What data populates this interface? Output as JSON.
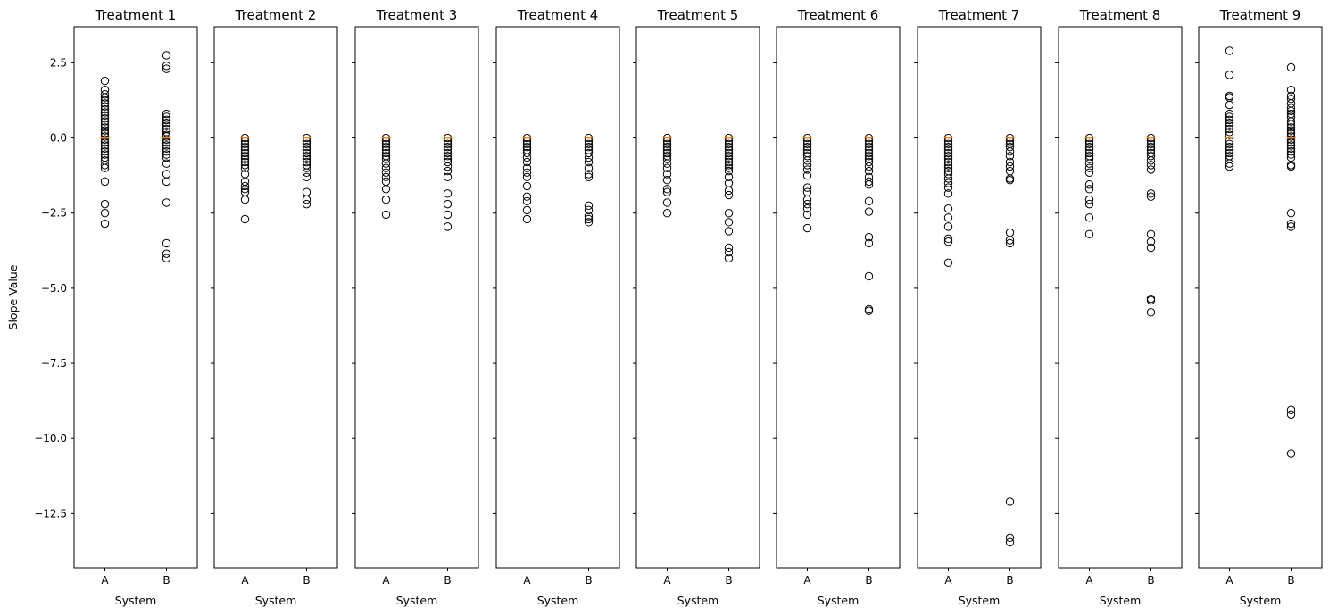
{
  "chart_data": {
    "type": "box",
    "ylabel": "Slope Value",
    "xlabel": "System",
    "ylim": [
      -14.3,
      3.7
    ],
    "yticks": [
      2.5,
      0.0,
      -2.5,
      -5.0,
      -7.5,
      -10.0,
      -12.5
    ],
    "ytick_labels": [
      "2.5",
      "0.0",
      "−2.5",
      "−5.0",
      "−7.5",
      "−10.0",
      "−12.5"
    ],
    "categories": [
      "A",
      "B"
    ],
    "median_color": "#ff7f0e",
    "panels": [
      {
        "title": "Treatment 1",
        "A": {
          "median": 0.0,
          "outliers": [
            1.9,
            1.6,
            1.45,
            1.35,
            1.25,
            1.15,
            1.05,
            0.95,
            0.85,
            0.75,
            0.65,
            0.55,
            0.45,
            0.35,
            0.25,
            0.15,
            0.05,
            -0.05,
            -0.15,
            -0.25,
            -0.35,
            -0.45,
            -0.55,
            -0.65,
            -0.75,
            -0.9,
            -1.0,
            -1.45,
            -2.2,
            -2.5,
            -2.85
          ]
        },
        "B": {
          "median": 0.0,
          "outliers": [
            2.75,
            2.4,
            2.3,
            0.8,
            0.7,
            0.6,
            0.5,
            0.4,
            0.3,
            0.2,
            0.1,
            0.05,
            -0.05,
            -0.15,
            -0.25,
            -0.35,
            -0.45,
            -0.55,
            -0.65,
            -0.85,
            -1.2,
            -1.45,
            -2.15,
            -3.5,
            -3.85,
            -4.0
          ]
        }
      },
      {
        "title": "Treatment 2",
        "A": {
          "median": 0.0,
          "outliers": [
            0.0,
            -0.1,
            -0.2,
            -0.3,
            -0.4,
            -0.5,
            -0.6,
            -0.7,
            -0.8,
            -0.9,
            -1.0,
            -1.2,
            -1.45,
            -1.6,
            -1.7,
            -1.8,
            -2.05,
            -2.7
          ]
        },
        "B": {
          "median": 0.0,
          "outliers": [
            0.0,
            -0.1,
            -0.2,
            -0.3,
            -0.4,
            -0.5,
            -0.6,
            -0.7,
            -0.8,
            -0.9,
            -1.0,
            -1.15,
            -1.3,
            -1.8,
            -2.05,
            -2.2
          ]
        }
      },
      {
        "title": "Treatment 3",
        "A": {
          "median": 0.0,
          "outliers": [
            0.0,
            -0.1,
            -0.2,
            -0.3,
            -0.4,
            -0.5,
            -0.6,
            -0.7,
            -0.85,
            -1.0,
            -1.15,
            -1.3,
            -1.45,
            -1.7,
            -2.05,
            -2.55
          ]
        },
        "B": {
          "median": 0.0,
          "outliers": [
            0.0,
            -0.1,
            -0.2,
            -0.3,
            -0.4,
            -0.5,
            -0.6,
            -0.7,
            -0.8,
            -0.95,
            -1.1,
            -1.3,
            -1.85,
            -2.2,
            -2.55,
            -2.95
          ]
        }
      },
      {
        "title": "Treatment 4",
        "A": {
          "median": 0.0,
          "outliers": [
            0.0,
            -0.1,
            -0.2,
            -0.3,
            -0.4,
            -0.5,
            -0.65,
            -0.8,
            -1.0,
            -1.15,
            -1.3,
            -1.6,
            -1.95,
            -2.1,
            -2.4,
            -2.7
          ]
        },
        "B": {
          "median": 0.0,
          "outliers": [
            0.0,
            -0.1,
            -0.2,
            -0.3,
            -0.4,
            -0.5,
            -0.65,
            -0.8,
            -1.0,
            -1.2,
            -1.3,
            -2.25,
            -2.4,
            -2.6,
            -2.7,
            -2.8
          ]
        }
      },
      {
        "title": "Treatment 5",
        "A": {
          "median": 0.0,
          "outliers": [
            0.0,
            -0.1,
            -0.2,
            -0.3,
            -0.4,
            -0.5,
            -0.6,
            -0.7,
            -0.85,
            -1.0,
            -1.2,
            -1.4,
            -1.7,
            -1.8,
            -2.15,
            -2.5
          ]
        },
        "B": {
          "median": 0.0,
          "outliers": [
            0.0,
            -0.1,
            -0.2,
            -0.3,
            -0.4,
            -0.5,
            -0.6,
            -0.7,
            -0.8,
            -0.9,
            -1.0,
            -1.1,
            -1.3,
            -1.5,
            -1.75,
            -1.9,
            -2.5,
            -2.8,
            -3.1,
            -3.65,
            -3.8,
            -4.0
          ]
        }
      },
      {
        "title": "Treatment 6",
        "A": {
          "median": 0.0,
          "outliers": [
            0.0,
            -0.1,
            -0.2,
            -0.3,
            -0.4,
            -0.5,
            -0.6,
            -0.75,
            -0.9,
            -1.05,
            -1.25,
            -1.65,
            -1.8,
            -2.05,
            -2.2,
            -2.35,
            -2.55,
            -3.0
          ]
        },
        "B": {
          "median": 0.0,
          "outliers": [
            0.0,
            -0.1,
            -0.2,
            -0.3,
            -0.4,
            -0.5,
            -0.6,
            -0.7,
            -0.8,
            -0.95,
            -1.1,
            -1.3,
            -1.45,
            -1.55,
            -2.1,
            -2.45,
            -3.3,
            -3.5,
            -4.6,
            -5.7,
            -5.75
          ]
        }
      },
      {
        "title": "Treatment 7",
        "A": {
          "median": 0.0,
          "outliers": [
            0.0,
            -0.1,
            -0.2,
            -0.3,
            -0.4,
            -0.5,
            -0.6,
            -0.7,
            -0.8,
            -0.9,
            -1.0,
            -1.1,
            -1.2,
            -1.35,
            -1.5,
            -1.65,
            -1.85,
            -2.35,
            -2.65,
            -2.95,
            -3.35,
            -3.45,
            -4.15
          ]
        },
        "B": {
          "median": 0.0,
          "outliers": [
            0.0,
            -0.1,
            -0.2,
            -0.3,
            -0.45,
            -0.6,
            -0.8,
            -0.95,
            -1.1,
            -1.35,
            -1.4,
            -3.15,
            -3.4,
            -3.5,
            -12.1,
            -13.3,
            -13.45
          ]
        }
      },
      {
        "title": "Treatment 8",
        "A": {
          "median": 0.0,
          "outliers": [
            0.0,
            -0.1,
            -0.2,
            -0.3,
            -0.4,
            -0.5,
            -0.6,
            -0.7,
            -0.85,
            -1.0,
            -1.15,
            -1.55,
            -1.7,
            -2.05,
            -2.2,
            -2.65,
            -3.2
          ]
        },
        "B": {
          "median": 0.0,
          "outliers": [
            0.0,
            -0.1,
            -0.2,
            -0.3,
            -0.4,
            -0.5,
            -0.6,
            -0.75,
            -0.9,
            -1.05,
            -1.85,
            -1.95,
            -3.2,
            -3.45,
            -3.65,
            -5.35,
            -5.4,
            -5.8
          ]
        }
      },
      {
        "title": "Treatment 9",
        "A": {
          "median": 0.0,
          "outliers": [
            2.9,
            2.1,
            1.4,
            1.35,
            1.1,
            0.8,
            0.7,
            0.6,
            0.5,
            0.4,
            0.3,
            0.2,
            0.1,
            -0.1,
            -0.2,
            -0.3,
            -0.4,
            -0.5,
            -0.6,
            -0.7,
            -0.85,
            -0.95
          ]
        },
        "B": {
          "median": 0.0,
          "outliers": [
            2.35,
            1.6,
            1.4,
            1.3,
            1.15,
            1.0,
            0.9,
            0.8,
            0.7,
            0.55,
            0.45,
            0.35,
            0.25,
            0.15,
            0.05,
            -0.05,
            -0.15,
            -0.25,
            -0.35,
            -0.45,
            -0.55,
            -0.65,
            -0.9,
            -0.95,
            -2.5,
            -2.85,
            -2.95,
            -9.05,
            -9.2,
            -10.5
          ]
        }
      }
    ]
  }
}
